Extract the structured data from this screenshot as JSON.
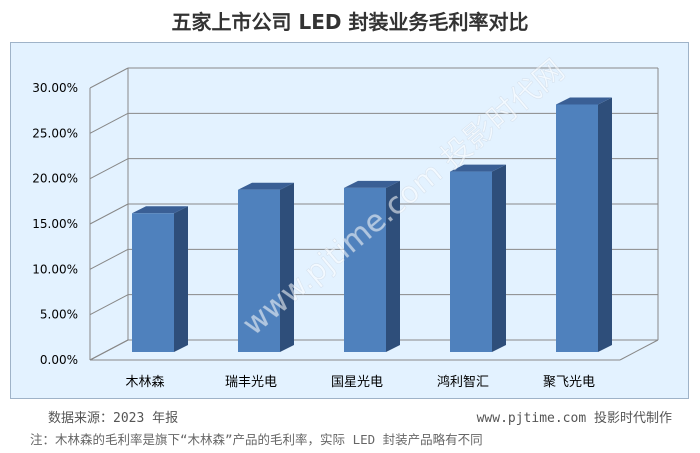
{
  "title": "五家上市公司 LED 封装业务毛利率对比",
  "watermark": "www.pjtime.com 投影时代网",
  "chart_data": {
    "type": "bar",
    "categories": [
      "木林森",
      "瑞丰光电",
      "国星光电",
      "鸿利智汇",
      "聚飞光电"
    ],
    "values": [
      15.3,
      17.9,
      18.1,
      19.9,
      27.3
    ],
    "ylim": [
      0,
      30
    ],
    "yticks": [
      "0.00%",
      "5.00%",
      "10.00%",
      "15.00%",
      "20.00%",
      "25.00%",
      "30.00%"
    ],
    "grid": true,
    "colors": {
      "front": "#4f81bd",
      "side": "#2e4e7a",
      "top": "#3a5f95",
      "grid": "#888888"
    }
  },
  "footer": {
    "source": "数据来源：2023 年报",
    "credit": "www.pjtime.com 投影时代制作",
    "note": "注：木林森的毛利率是旗下“木林森”产品的毛利率，实际 LED 封装产品略有不同"
  }
}
